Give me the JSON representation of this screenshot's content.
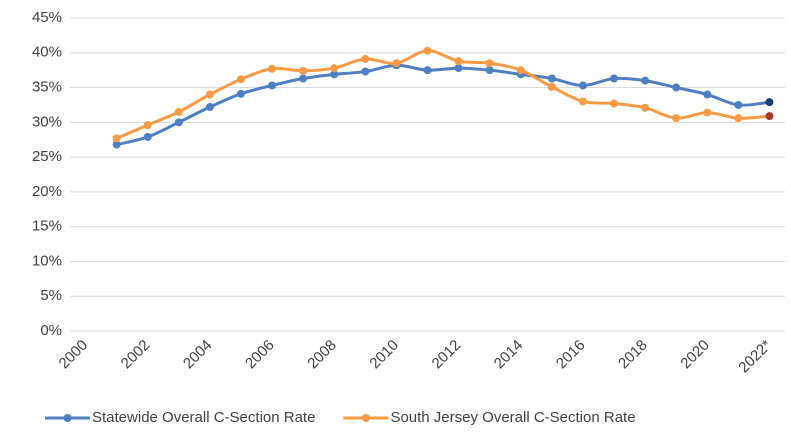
{
  "chart_data": {
    "type": "line",
    "categories": [
      "2000",
      null,
      "2002",
      null,
      "2004",
      null,
      "2006",
      null,
      "2008",
      null,
      "2010",
      null,
      "2012",
      null,
      "2014",
      null,
      "2016",
      null,
      "2018",
      null,
      "2020",
      null,
      "2022*"
    ],
    "series": [
      {
        "name": "Statewide Overall C-Section Rate",
        "color": "#4e7fc0",
        "last_color": "#1f3c6b",
        "values": [
          null,
          26.8,
          27.9,
          30.0,
          32.2,
          34.1,
          35.3,
          36.3,
          36.9,
          37.3,
          38.2,
          37.5,
          37.8,
          37.5,
          36.9,
          36.3,
          35.3,
          36.3,
          36.0,
          35.0,
          34.0,
          32.5,
          32.9
        ]
      },
      {
        "name": "South Jersey Overall C-Section Rate",
        "color": "#f79a46",
        "last_color": "#a33a2a",
        "values": [
          null,
          27.7,
          29.6,
          31.5,
          34.0,
          36.2,
          37.7,
          37.4,
          37.8,
          39.1,
          38.5,
          40.3,
          38.8,
          38.5,
          37.5,
          35.1,
          33.0,
          32.7,
          32.1,
          30.6,
          31.4,
          30.6,
          30.9
        ]
      }
    ],
    "ylim": [
      0,
      45
    ],
    "yticks": [
      {
        "value": 0,
        "label": "0%"
      },
      {
        "value": 5,
        "label": "5%"
      },
      {
        "value": 10,
        "label": "10%"
      },
      {
        "value": 15,
        "label": "15%"
      },
      {
        "value": 20,
        "label": "20%"
      },
      {
        "value": 25,
        "label": "25%"
      },
      {
        "value": 30,
        "label": "30%"
      },
      {
        "value": 35,
        "label": "35%"
      },
      {
        "value": 40,
        "label": "40%"
      },
      {
        "value": 45,
        "label": "45%"
      }
    ],
    "grid": true,
    "legend": "bottom"
  }
}
